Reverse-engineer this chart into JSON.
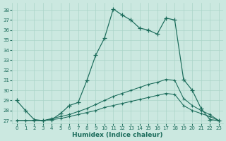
{
  "xlabel": "Humidex (Indice chaleur)",
  "bg_color": "#cbe8e0",
  "grid_color": "#aad4c8",
  "line_color": "#1a6b5a",
  "ylim": [
    26.7,
    38.7
  ],
  "xlim": [
    -0.5,
    23.5
  ],
  "yticks": [
    27,
    28,
    29,
    30,
    31,
    32,
    33,
    34,
    35,
    36,
    37,
    38
  ],
  "xticks": [
    0,
    1,
    2,
    3,
    4,
    5,
    6,
    7,
    8,
    9,
    10,
    11,
    12,
    13,
    14,
    15,
    16,
    17,
    18,
    19,
    20,
    21,
    22,
    23
  ],
  "curve_main_x": [
    0,
    1,
    2,
    3,
    4,
    5,
    6,
    7,
    8,
    9,
    10,
    11,
    12,
    13,
    14,
    15,
    16,
    17,
    18,
    19,
    20,
    21,
    22,
    23
  ],
  "curve_main_y": [
    29.0,
    28.0,
    27.1,
    27.0,
    27.1,
    27.7,
    28.5,
    28.8,
    31.0,
    33.5,
    35.2,
    38.1,
    37.5,
    37.0,
    36.2,
    36.0,
    35.6,
    37.2,
    37.0,
    31.1,
    30.0,
    28.2,
    27.1,
    27.0
  ],
  "curve_lin1_x": [
    0,
    1,
    2,
    3,
    4,
    5,
    6,
    7,
    8,
    9,
    10,
    11,
    12,
    13,
    14,
    15,
    16,
    17,
    18,
    19,
    20,
    21,
    22,
    23
  ],
  "curve_lin1_y": [
    27.0,
    27.0,
    27.0,
    27.0,
    27.2,
    27.4,
    27.6,
    27.9,
    28.2,
    28.6,
    29.0,
    29.4,
    29.7,
    30.0,
    30.3,
    30.6,
    30.8,
    31.1,
    31.0,
    29.2,
    28.5,
    28.0,
    27.6,
    27.0
  ],
  "curve_lin2_x": [
    0,
    1,
    2,
    3,
    4,
    5,
    6,
    7,
    8,
    9,
    10,
    11,
    12,
    13,
    14,
    15,
    16,
    17,
    18,
    19,
    20,
    21,
    22,
    23
  ],
  "curve_lin2_y": [
    27.0,
    27.0,
    27.0,
    27.0,
    27.1,
    27.2,
    27.4,
    27.6,
    27.8,
    28.0,
    28.3,
    28.5,
    28.7,
    28.9,
    29.1,
    29.3,
    29.5,
    29.7,
    29.6,
    28.5,
    28.0,
    27.7,
    27.4,
    27.0
  ]
}
